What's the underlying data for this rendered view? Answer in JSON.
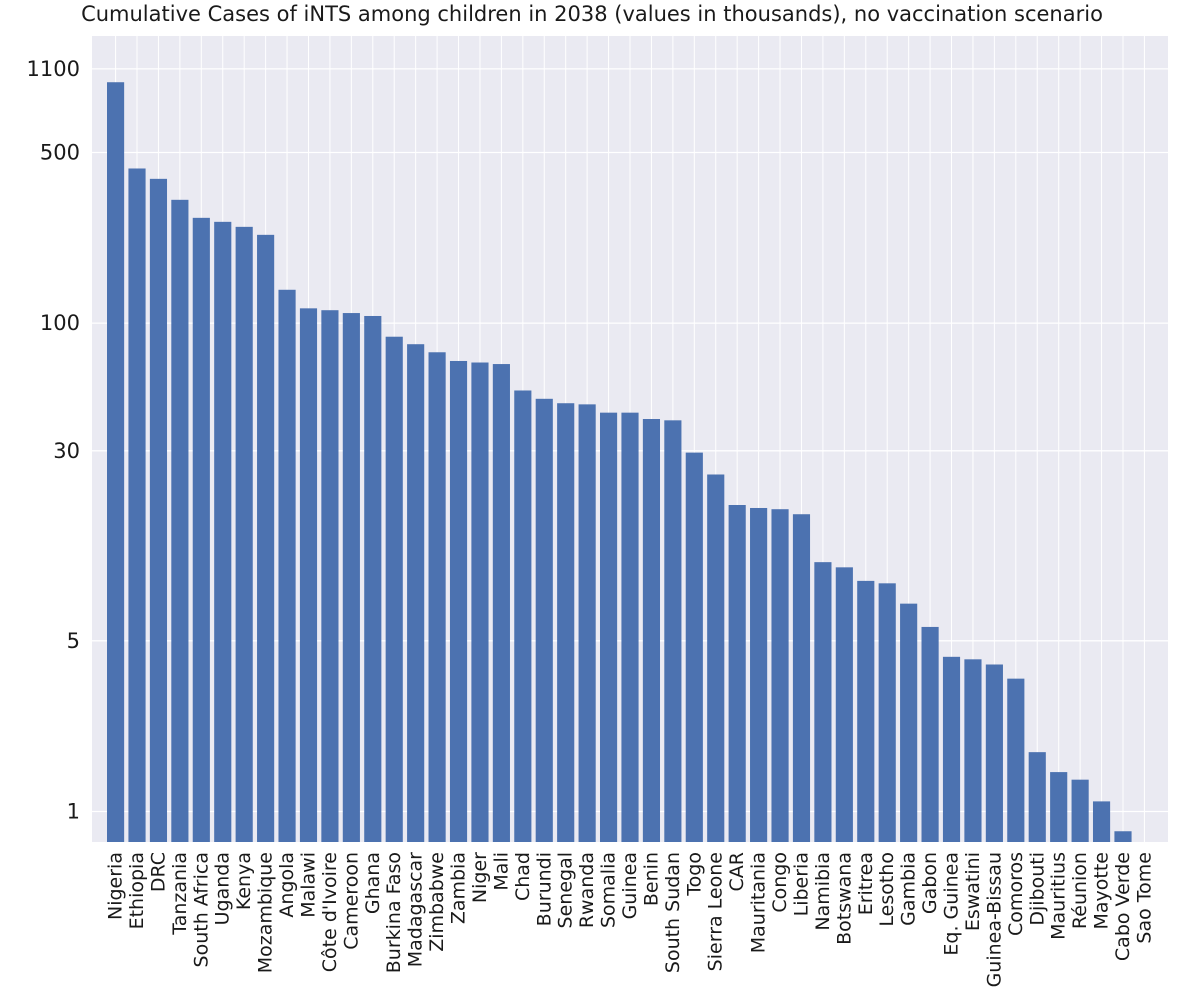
{
  "chart_data": {
    "type": "bar",
    "title": "Cumulative Cases of iNTS among children in 2038 (values in thousands), no vaccination scenario",
    "xlabel": "",
    "ylabel": "",
    "yscale": "log",
    "yticks": [
      1,
      5,
      30,
      100,
      500,
      1100
    ],
    "ytick_labels": [
      "1",
      "5",
      "30",
      "100",
      "500",
      "1100"
    ],
    "ylim": [
      0.75,
      1500
    ],
    "grid": true,
    "colors": {
      "bar": "#4c72b0",
      "plot_bg": "#eaeaf2",
      "grid": "#ffffff"
    },
    "categories": [
      "Nigeria",
      "Ethiopia",
      "DRC",
      "Tanzania",
      "South Africa",
      "Uganda",
      "Kenya",
      "Mozambique",
      "Angola",
      "Malawi",
      "Côte d'Ivoire",
      "Cameroon",
      "Ghana",
      "Burkina Faso",
      "Madagascar",
      "Zimbabwe",
      "Zambia",
      "Niger",
      "Mali",
      "Chad",
      "Burundi",
      "Senegal",
      "Rwanda",
      "Somalia",
      "Guinea",
      "Benin",
      "South Sudan",
      "Togo",
      "Sierra Leone",
      "CAR",
      "Mauritania",
      "Congo",
      "Liberia",
      "Namibia",
      "Botswana",
      "Eritrea",
      "Lesotho",
      "Gambia",
      "Gabon",
      "Eq. Guinea",
      "Eswatini",
      "Guinea-Bissau",
      "Comoros",
      "Djibouti",
      "Mauritius",
      "Réunion",
      "Mayotte",
      "Cabo Verde",
      "Sao Tome"
    ],
    "values": [
      970,
      430,
      390,
      320,
      270,
      260,
      248,
      230,
      137,
      115,
      113,
      110,
      107,
      88,
      82,
      76,
      70,
      69,
      68,
      53,
      49,
      47,
      46.5,
      43,
      43,
      40.5,
      40,
      29.5,
      24,
      18,
      17.5,
      17.3,
      16.5,
      10.5,
      10,
      8.8,
      8.6,
      7.1,
      5.7,
      4.3,
      4.2,
      4,
      3.5,
      1.75,
      1.45,
      1.35,
      1.1,
      0.83,
      0.55
    ]
  }
}
